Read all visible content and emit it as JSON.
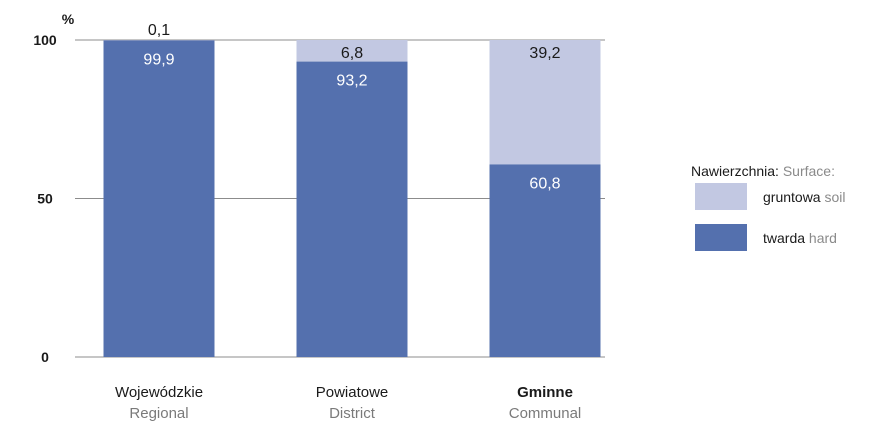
{
  "chart_data": {
    "type": "bar",
    "stacked": true,
    "unit": "%",
    "ylim": [
      0,
      100
    ],
    "yticks": [
      0,
      50,
      100
    ],
    "grid": true,
    "legend_position": "right",
    "categories": [
      {
        "pl": "Wojewódzkie",
        "en": "Regional",
        "bold": false
      },
      {
        "pl": "Powiatowe",
        "en": "District",
        "bold": false
      },
      {
        "pl": "Gminne",
        "en": "Communal",
        "bold": true
      }
    ],
    "series": [
      {
        "key": "hard",
        "pl": "twarda",
        "en": "hard",
        "color": "#5470ae",
        "label_color": "#ffffff",
        "values": [
          99.9,
          93.2,
          60.8
        ],
        "labels": [
          "99,9",
          "93,2",
          "60,8"
        ]
      },
      {
        "key": "soil",
        "pl": "gruntowa",
        "en": "soil",
        "color": "#c2c8e2",
        "label_color": "#1a1a1a",
        "values": [
          0.1,
          6.8,
          39.2
        ],
        "labels": [
          "0,1",
          "6,8",
          "39,2"
        ]
      }
    ],
    "legend": {
      "title_pl": "Nawierzchnia:",
      "title_en": "Surface:"
    }
  }
}
